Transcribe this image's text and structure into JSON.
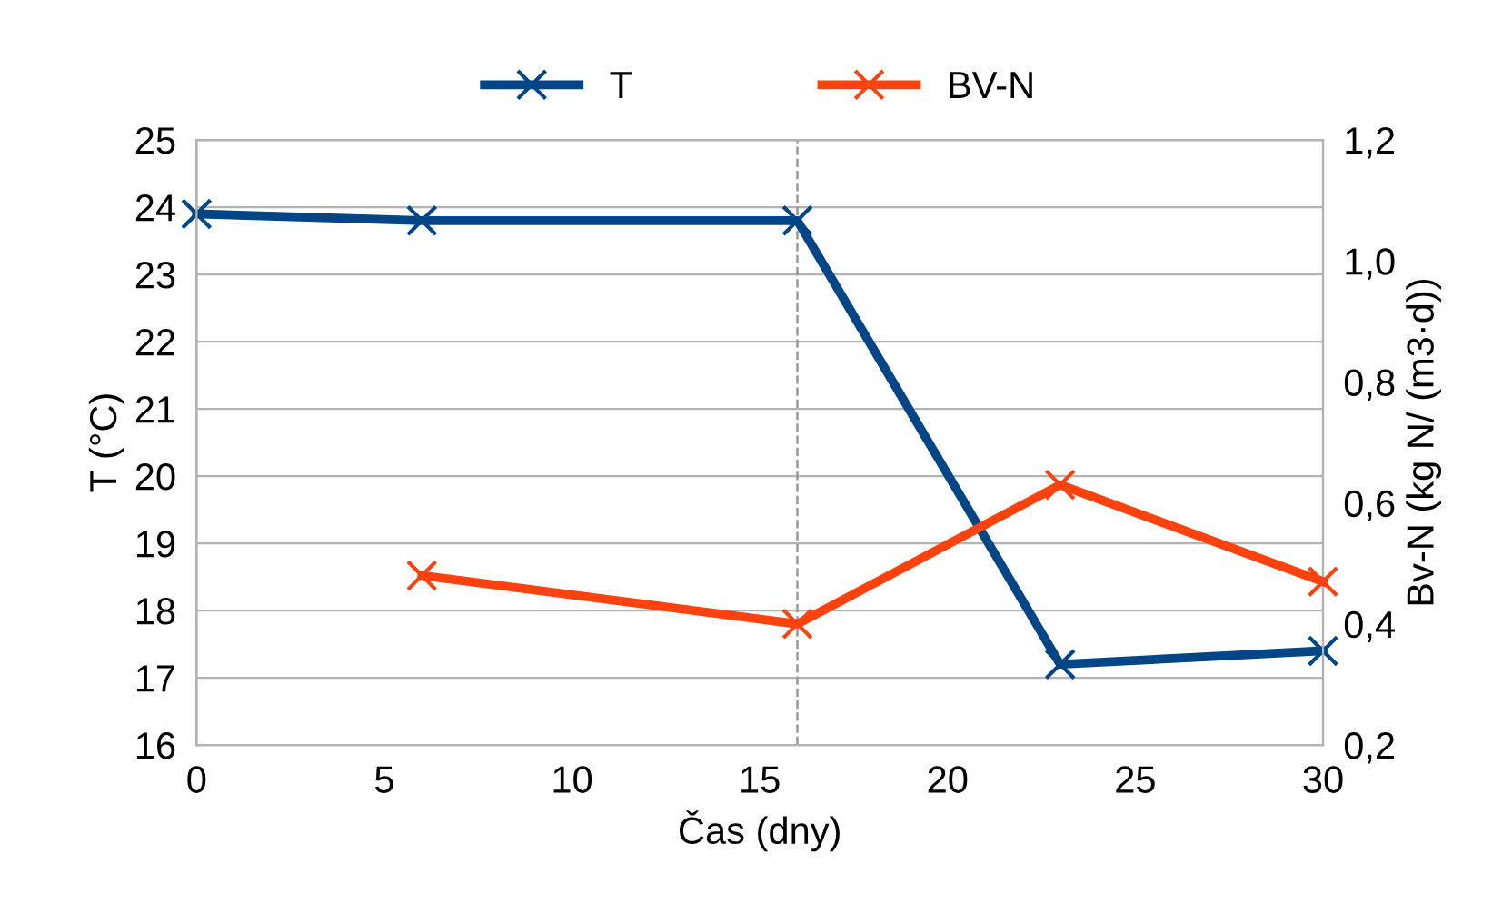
{
  "chart_data": {
    "type": "line",
    "xlabel": "Čas (dny)",
    "ylabel": "T (°C)",
    "y2label": "Bv-N (kg N/ (m3·d))",
    "xlim": [
      0,
      30
    ],
    "xticks": [
      0,
      5,
      10,
      15,
      20,
      25,
      30
    ],
    "ylim": [
      16,
      25
    ],
    "yticks": [
      16,
      17,
      18,
      19,
      20,
      21,
      22,
      23,
      24,
      25
    ],
    "y2lim": [
      0.2,
      1.2
    ],
    "y2ticks": [
      {
        "value": 0.2,
        "label": "0,2"
      },
      {
        "value": 0.4,
        "label": "0,4"
      },
      {
        "value": 0.6,
        "label": "0,6"
      },
      {
        "value": 0.8,
        "label": "0,8"
      },
      {
        "value": 1.0,
        "label": "1,0"
      },
      {
        "value": 1.2,
        "label": "1,2"
      }
    ],
    "grid": "y",
    "legend": "top",
    "marker": "cross",
    "line_style": "solid",
    "ref_lines": [
      {
        "axis": "x",
        "value": 16,
        "color": "#999999",
        "line_style": "dashed"
      }
    ],
    "series": [
      {
        "name": "T",
        "color": "#004586",
        "x": [
          0,
          6,
          16,
          23,
          30
        ],
        "values": [
          23.9,
          23.8,
          23.8,
          17.2,
          17.4
        ]
      },
      {
        "name": "BV-N",
        "color": "#ff420e",
        "axis": "y2",
        "x": [
          6,
          16,
          23,
          30
        ],
        "values": [
          0.48,
          0.4,
          0.63,
          0.47
        ]
      }
    ]
  }
}
